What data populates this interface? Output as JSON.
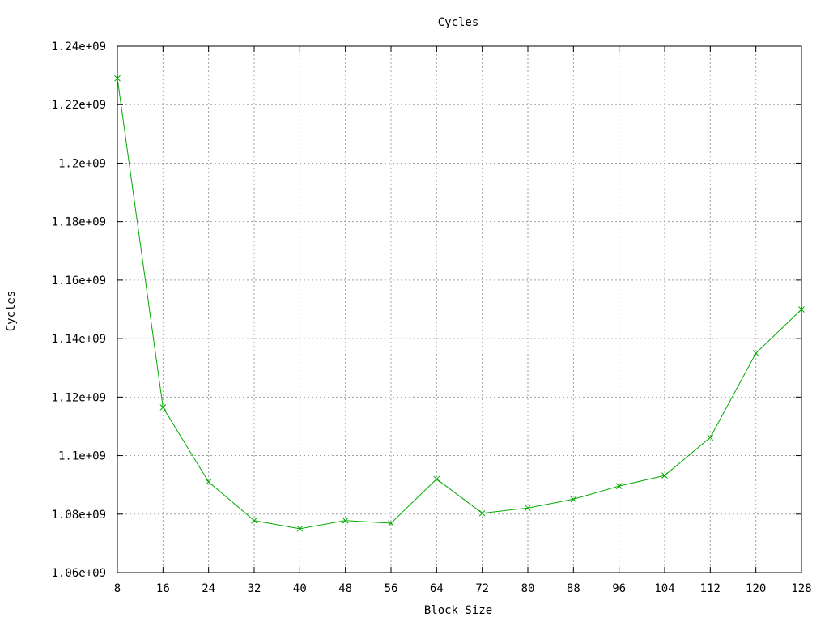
{
  "chart_data": {
    "type": "line",
    "title": "Cycles",
    "xlabel": "Block Size",
    "ylabel": "Cycles",
    "xlim": [
      8,
      128
    ],
    "ylim": [
      1060000000,
      1240000000
    ],
    "x_ticks": [
      8,
      16,
      24,
      32,
      40,
      48,
      56,
      64,
      72,
      80,
      88,
      96,
      104,
      112,
      120,
      128
    ],
    "x_tick_labels": [
      "8",
      "16",
      "24",
      "32",
      "40",
      "48",
      "56",
      "64",
      "72",
      "80",
      "88",
      "96",
      "104",
      "112",
      "120",
      "128"
    ],
    "y_ticks": [
      1060000000,
      1080000000,
      1100000000,
      1120000000,
      1140000000,
      1160000000,
      1180000000,
      1200000000,
      1220000000,
      1240000000
    ],
    "y_tick_labels": [
      "1.06e+09",
      "1.08e+09",
      "1.1e+09",
      "1.12e+09",
      "1.14e+09",
      "1.16e+09",
      "1.18e+09",
      "1.2e+09",
      "1.22e+09",
      "1.24e+09"
    ],
    "grid": true,
    "series": [
      {
        "color": "#00aa00",
        "marker": "x",
        "x": [
          8,
          16,
          24,
          32,
          40,
          48,
          56,
          64,
          72,
          80,
          88,
          96,
          104,
          112,
          120,
          128
        ],
        "y": [
          1229000000,
          1116500000,
          1091000000,
          1077800000,
          1075000000,
          1077800000,
          1076900000,
          1092000000,
          1080300000,
          1082100000,
          1085100000,
          1089600000,
          1093200000,
          1106200000,
          1135000000,
          1150000000
        ]
      }
    ]
  }
}
